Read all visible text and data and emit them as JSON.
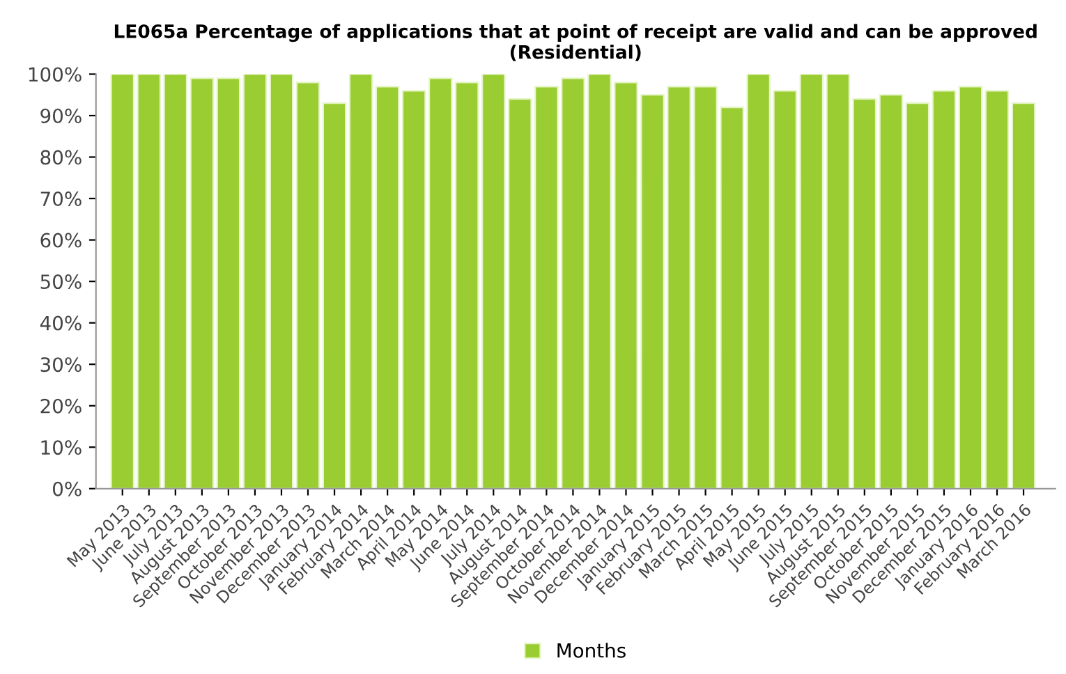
{
  "chart_data": {
    "type": "bar",
    "title": "LE065a Percentage of applications that at point of receipt are valid and can be approved\n(Residential)",
    "categories": [
      "May 2013",
      "June 2013",
      "July 2013",
      "August 2013",
      "September 2013",
      "October 2013",
      "November 2013",
      "December 2013",
      "January 2014",
      "February 2014",
      "March 2014",
      "April 2014",
      "May 2014",
      "June 2014",
      "July 2014",
      "August 2014",
      "September 2014",
      "October 2014",
      "November 2014",
      "December 2014",
      "January 2015",
      "February 2015",
      "March 2015",
      "April 2015",
      "May 2015",
      "June 2015",
      "July 2015",
      "August 2015",
      "September 2015",
      "October 2015",
      "November 2015",
      "December 2015",
      "January 2016",
      "February 2016",
      "March 2016"
    ],
    "series": [
      {
        "name": "Months",
        "color": "#9acd32",
        "values": [
          100,
          100,
          100,
          99,
          99,
          100,
          100,
          98,
          93,
          100,
          97,
          96,
          99,
          98,
          100,
          94,
          97,
          99,
          100,
          98,
          95,
          97,
          97,
          92,
          100,
          96,
          100,
          100,
          94,
          95,
          93,
          96,
          97,
          96,
          93
        ]
      }
    ],
    "ylim": [
      0,
      100
    ],
    "yticks": [
      {
        "value": 0,
        "label": "0%"
      },
      {
        "value": 10,
        "label": "10%"
      },
      {
        "value": 20,
        "label": "20%"
      },
      {
        "value": 30,
        "label": "30%"
      },
      {
        "value": 40,
        "label": "40%"
      },
      {
        "value": 50,
        "label": "50%"
      },
      {
        "value": 60,
        "label": "60%"
      },
      {
        "value": 70,
        "label": "70%"
      },
      {
        "value": 80,
        "label": "80%"
      },
      {
        "value": 90,
        "label": "90%"
      },
      {
        "value": 100,
        "label": "100%"
      }
    ],
    "grid": false,
    "legend": "bottom"
  }
}
